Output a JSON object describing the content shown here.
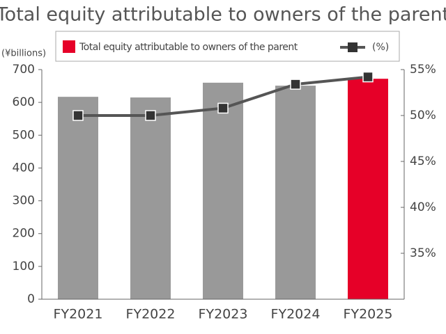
{
  "chart_data": {
    "type": "bar_line",
    "title": "Total equity attributable to owners of the parent",
    "y_label": "(¥billions)",
    "categories": [
      "FY2021",
      "FY2022",
      "FY2023",
      "FY2024",
      "FY2025"
    ],
    "series": [
      {
        "name": "Total equity attributable to owners of the parent",
        "type": "bar",
        "color": "#e60028",
        "colors": [
          "#999999",
          "#999999",
          "#999999",
          "#999999",
          "#e60028"
        ],
        "values": [
          617,
          615,
          660,
          651,
          672
        ]
      },
      {
        "name": "(%)",
        "type": "line",
        "axis": "y2",
        "color": "#555555",
        "marker_color": "#333333",
        "values": [
          50.0,
          50.0,
          50.8,
          53.4,
          54.2
        ]
      }
    ],
    "ylim": [
      0,
      700
    ],
    "yticks": [
      0,
      100,
      200,
      300,
      400,
      500,
      600,
      700
    ],
    "y2lim": [
      30,
      55
    ],
    "y2ticks": [
      {
        "value": 35,
        "label": "35%"
      },
      {
        "value": 40,
        "label": "40%"
      },
      {
        "value": 45,
        "label": "45%"
      },
      {
        "value": 50,
        "label": "50%"
      },
      {
        "value": 55,
        "label": "55%"
      }
    ]
  }
}
